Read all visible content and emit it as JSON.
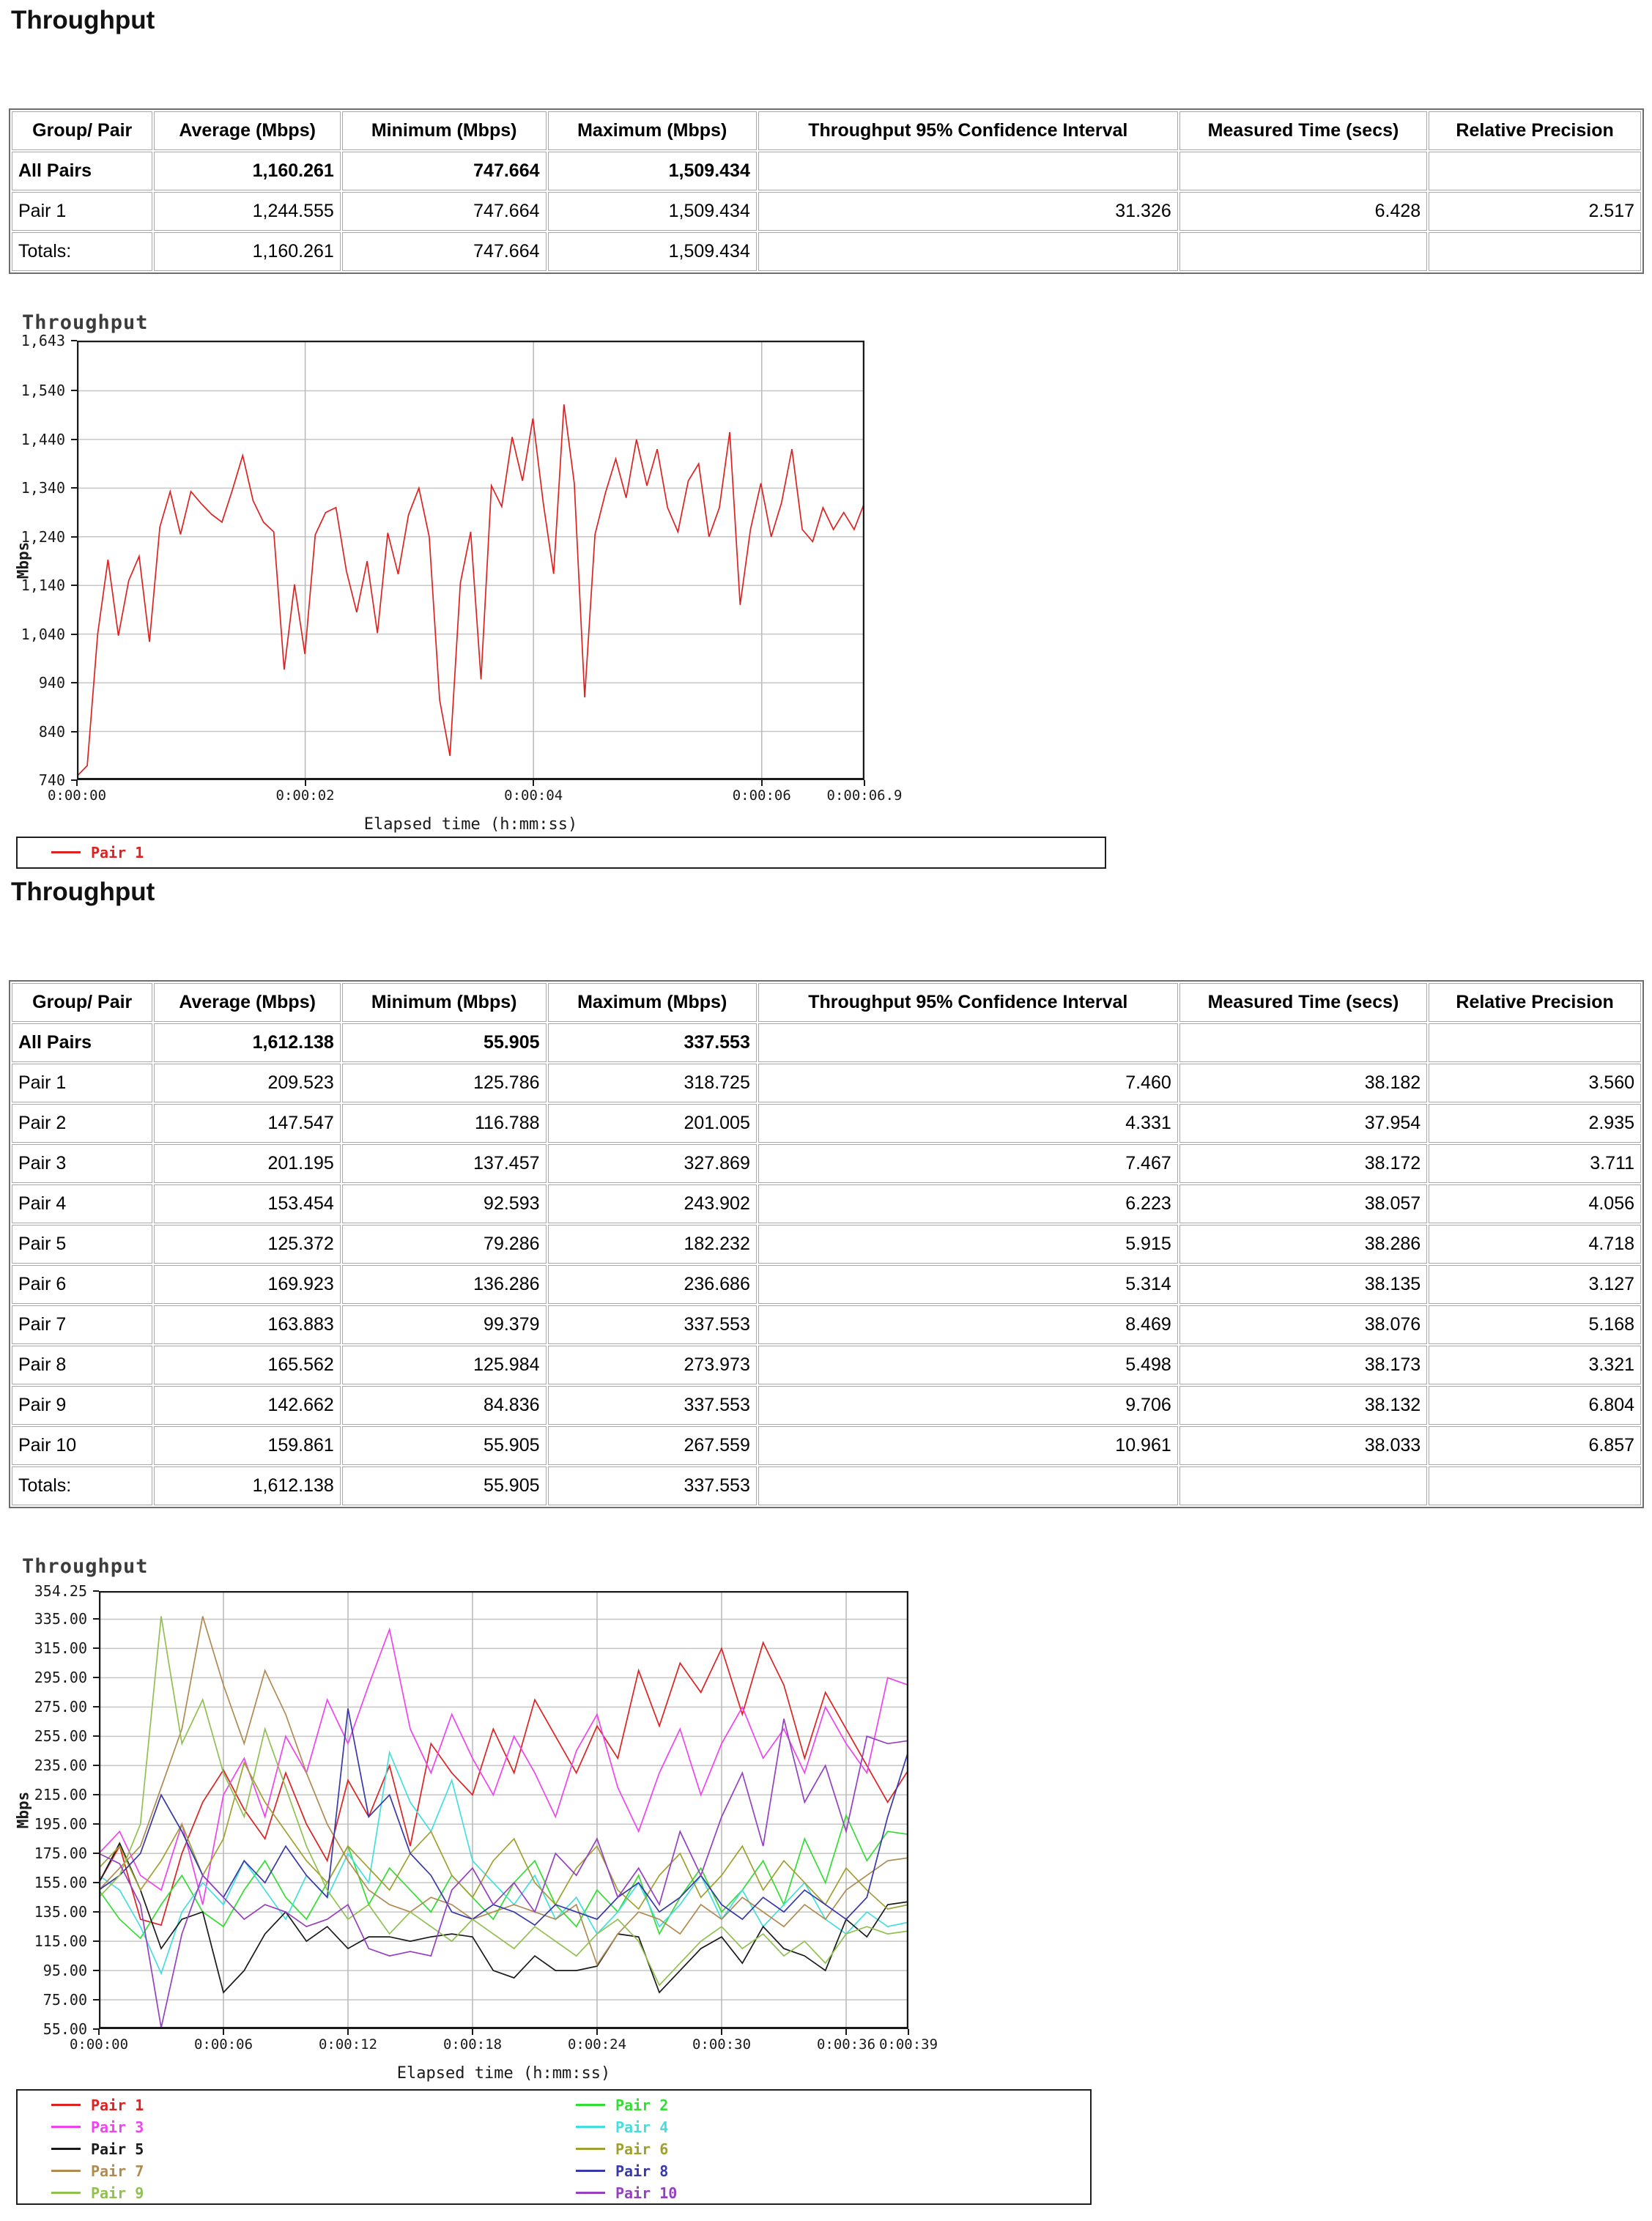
{
  "sections": [
    {
      "heading": "Throughput"
    },
    {
      "heading": "Throughput"
    }
  ],
  "tables": [
    {
      "headers": [
        "Group/ Pair",
        "Average (Mbps)",
        "Minimum (Mbps)",
        "Maximum (Mbps)",
        "Throughput 95% Confidence Interval",
        "Measured Time (secs)",
        "Relative Precision"
      ],
      "col_widths_pct": [
        8.7,
        11.5,
        12.6,
        12.9,
        25.9,
        15.3,
        13.1
      ],
      "rows": [
        {
          "bold": true,
          "cells": [
            "All Pairs",
            "1,160.261",
            "747.664",
            "1,509.434",
            "",
            "",
            ""
          ]
        },
        {
          "bold": false,
          "cells": [
            "Pair 1",
            "1,244.555",
            "747.664",
            "1,509.434",
            "31.326",
            "6.428",
            "2.517"
          ]
        },
        {
          "bold": false,
          "cells": [
            "Totals:",
            "1,160.261",
            "747.664",
            "1,509.434",
            "",
            "",
            ""
          ]
        }
      ]
    },
    {
      "headers": [
        "Group/ Pair",
        "Average (Mbps)",
        "Minimum (Mbps)",
        "Maximum (Mbps)",
        "Throughput 95% Confidence Interval",
        "Measured Time (secs)",
        "Relative Precision"
      ],
      "col_widths_pct": [
        8.7,
        11.5,
        12.6,
        12.9,
        25.9,
        15.3,
        13.1
      ],
      "rows": [
        {
          "bold": true,
          "cells": [
            "All Pairs",
            "1,612.138",
            "55.905",
            "337.553",
            "",
            "",
            ""
          ]
        },
        {
          "bold": false,
          "cells": [
            "Pair 1",
            "209.523",
            "125.786",
            "318.725",
            "7.460",
            "38.182",
            "3.560"
          ]
        },
        {
          "bold": false,
          "cells": [
            "Pair 2",
            "147.547",
            "116.788",
            "201.005",
            "4.331",
            "37.954",
            "2.935"
          ]
        },
        {
          "bold": false,
          "cells": [
            "Pair 3",
            "201.195",
            "137.457",
            "327.869",
            "7.467",
            "38.172",
            "3.711"
          ]
        },
        {
          "bold": false,
          "cells": [
            "Pair 4",
            "153.454",
            "92.593",
            "243.902",
            "6.223",
            "38.057",
            "4.056"
          ]
        },
        {
          "bold": false,
          "cells": [
            "Pair 5",
            "125.372",
            "79.286",
            "182.232",
            "5.915",
            "38.286",
            "4.718"
          ]
        },
        {
          "bold": false,
          "cells": [
            "Pair 6",
            "169.923",
            "136.286",
            "236.686",
            "5.314",
            "38.135",
            "3.127"
          ]
        },
        {
          "bold": false,
          "cells": [
            "Pair 7",
            "163.883",
            "99.379",
            "337.553",
            "8.469",
            "38.076",
            "5.168"
          ]
        },
        {
          "bold": false,
          "cells": [
            "Pair 8",
            "165.562",
            "125.984",
            "273.973",
            "5.498",
            "38.173",
            "3.321"
          ]
        },
        {
          "bold": false,
          "cells": [
            "Pair 9",
            "142.662",
            "84.836",
            "337.553",
            "9.706",
            "38.132",
            "6.804"
          ]
        },
        {
          "bold": false,
          "cells": [
            "Pair 10",
            "159.861",
            "55.905",
            "267.559",
            "10.961",
            "38.033",
            "6.857"
          ]
        },
        {
          "bold": false,
          "cells": [
            "Totals:",
            "1,612.138",
            "55.905",
            "337.553",
            "",
            "",
            ""
          ]
        }
      ]
    }
  ],
  "chart_data": [
    {
      "type": "line",
      "title": "Throughput",
      "xlabel": "Elapsed time (h:mm:ss)",
      "ylabel": "Mbps",
      "ylim": [
        740,
        1643
      ],
      "xlim": [
        0,
        6.9
      ],
      "grid": true,
      "legend_position": "bottom-box",
      "legend_cols": 1,
      "ytick_values": [
        1643,
        1540,
        1440,
        1340,
        1240,
        1140,
        1040,
        940,
        840,
        740
      ],
      "ytick_labels": [
        "1,643",
        "1,540",
        "1,440",
        "1,340",
        "1,240",
        "1,140",
        "1,040",
        "940",
        "840",
        "740"
      ],
      "xtick_values": [
        0,
        2,
        4,
        6,
        6.9
      ],
      "xtick_labels": [
        "0:00:00",
        "0:00:02",
        "0:00:04",
        "0:00:06",
        "0:00:06.9"
      ],
      "x_values_evenly_spaced": true,
      "series": [
        {
          "name": "Pair 1",
          "color": "#dd2222",
          "y": [
            748,
            770,
            1040,
            1193,
            1037,
            1150,
            1200,
            1024,
            1260,
            1333,
            1245,
            1333,
            1308,
            1286,
            1270,
            1336,
            1407,
            1314,
            1270,
            1250,
            967,
            1142,
            999,
            1244,
            1290,
            1300,
            1170,
            1085,
            1190,
            1042,
            1248,
            1163,
            1285,
            1340,
            1240,
            905,
            790,
            1145,
            1250,
            947,
            1345,
            1302,
            1445,
            1355,
            1483,
            1310,
            1164,
            1512,
            1350,
            910,
            1245,
            1330,
            1400,
            1320,
            1440,
            1345,
            1420,
            1300,
            1250,
            1355,
            1390,
            1240,
            1300,
            1455,
            1100,
            1255,
            1350,
            1240,
            1310,
            1420,
            1255,
            1230,
            1300,
            1255,
            1290,
            1255,
            1310
          ]
        }
      ]
    },
    {
      "type": "line",
      "title": "Throughput",
      "xlabel": "Elapsed time (h:mm:ss)",
      "ylabel": "Mbps",
      "ylim": [
        55,
        354.25
      ],
      "xlim": [
        0,
        39
      ],
      "grid": true,
      "legend_position": "bottom-box",
      "legend_cols": 2,
      "ytick_values": [
        354.25,
        335,
        315,
        295,
        275,
        255,
        235,
        215,
        195,
        175,
        155,
        135,
        115,
        95,
        75,
        55
      ],
      "ytick_labels": [
        "354.25",
        "335.00",
        "315.00",
        "295.00",
        "275.00",
        "255.00",
        "235.00",
        "215.00",
        "195.00",
        "175.00",
        "155.00",
        "135.00",
        "115.00",
        "95.00",
        "75.00",
        "55.00"
      ],
      "xtick_values": [
        0,
        6,
        12,
        18,
        24,
        30,
        36,
        39
      ],
      "xtick_labels": [
        "0:00:00",
        "0:00:06",
        "0:00:12",
        "0:00:18",
        "0:00:24",
        "0:00:30",
        "0:00:36",
        "0:00:39"
      ],
      "x_values_evenly_spaced": true,
      "series": [
        {
          "name": "Pair 1",
          "color": "#dd2222",
          "y": [
            155,
            180,
            130,
            126,
            175,
            210,
            232,
            205,
            185,
            230,
            195,
            170,
            225,
            200,
            235,
            180,
            250,
            230,
            215,
            260,
            230,
            280,
            255,
            230,
            262,
            240,
            300,
            262,
            305,
            285,
            315,
            270,
            319,
            290,
            240,
            285,
            260,
            235,
            210,
            232
          ]
        },
        {
          "name": "Pair 2",
          "color": "#33dd33",
          "y": [
            150,
            130,
            117,
            140,
            160,
            135,
            125,
            150,
            170,
            145,
            130,
            155,
            180,
            140,
            165,
            150,
            135,
            160,
            145,
            130,
            155,
            170,
            140,
            125,
            150,
            135,
            160,
            120,
            145,
            165,
            135,
            150,
            170,
            140,
            185,
            155,
            201,
            170,
            190,
            188
          ]
        },
        {
          "name": "Pair 3",
          "color": "#ee44ee",
          "y": [
            175,
            190,
            160,
            150,
            195,
            140,
            215,
            240,
            200,
            255,
            230,
            280,
            250,
            290,
            328,
            260,
            230,
            270,
            240,
            215,
            255,
            230,
            200,
            245,
            270,
            220,
            190,
            230,
            260,
            215,
            250,
            275,
            240,
            260,
            230,
            275,
            250,
            230,
            295,
            290
          ]
        },
        {
          "name": "Pair 4",
          "color": "#44dede",
          "y": [
            160,
            150,
            125,
            93,
            135,
            155,
            140,
            170,
            150,
            130,
            160,
            145,
            175,
            155,
            244,
            210,
            190,
            225,
            170,
            155,
            140,
            160,
            130,
            145,
            120,
            135,
            155,
            125,
            140,
            160,
            130,
            150,
            125,
            140,
            155,
            130,
            120,
            135,
            125,
            128
          ]
        },
        {
          "name": "Pair 5",
          "color": "#1a1a1a",
          "y": [
            155,
            182,
            150,
            110,
            130,
            135,
            80,
            95,
            120,
            135,
            115,
            125,
            110,
            118,
            118,
            115,
            118,
            120,
            118,
            95,
            90,
            105,
            95,
            95,
            98,
            120,
            118,
            80,
            95,
            110,
            118,
            100,
            125,
            110,
            105,
            95,
            130,
            118,
            140,
            142
          ]
        },
        {
          "name": "Pair 6",
          "color": "#a0a030",
          "y": [
            165,
            180,
            150,
            170,
            195,
            160,
            185,
            237,
            210,
            190,
            170,
            155,
            180,
            165,
            150,
            175,
            190,
            160,
            145,
            170,
            185,
            155,
            140,
            165,
            180,
            150,
            137,
            160,
            175,
            145,
            160,
            180,
            150,
            170,
            155,
            140,
            165,
            150,
            137,
            140
          ]
        },
        {
          "name": "Pair 7",
          "color": "#b08a50",
          "y": [
            150,
            165,
            180,
            220,
            260,
            337,
            290,
            250,
            300,
            270,
            230,
            195,
            170,
            150,
            140,
            135,
            145,
            140,
            130,
            135,
            140,
            135,
            130,
            140,
            99,
            120,
            135,
            130,
            120,
            140,
            130,
            145,
            135,
            125,
            140,
            130,
            150,
            160,
            170,
            172
          ]
        },
        {
          "name": "Pair 8",
          "color": "#3838a8",
          "y": [
            150,
            160,
            175,
            215,
            190,
            160,
            145,
            170,
            155,
            180,
            160,
            145,
            274,
            200,
            215,
            175,
            160,
            135,
            130,
            140,
            135,
            126,
            140,
            135,
            130,
            145,
            155,
            135,
            145,
            160,
            140,
            130,
            145,
            135,
            150,
            140,
            130,
            145,
            200,
            245
          ]
        },
        {
          "name": "Pair 9",
          "color": "#90c050",
          "y": [
            145,
            160,
            195,
            337,
            250,
            280,
            230,
            200,
            260,
            220,
            180,
            150,
            130,
            140,
            120,
            135,
            125,
            115,
            130,
            120,
            110,
            125,
            115,
            105,
            120,
            130,
            115,
            85,
            100,
            115,
            125,
            110,
            120,
            105,
            115,
            100,
            120,
            125,
            120,
            122
          ]
        },
        {
          "name": "Pair 10",
          "color": "#9440c0",
          "y": [
            175,
            168,
            140,
            56,
            120,
            160,
            145,
            130,
            140,
            135,
            125,
            130,
            140,
            110,
            105,
            108,
            105,
            150,
            165,
            140,
            155,
            135,
            175,
            160,
            185,
            145,
            165,
            140,
            190,
            160,
            200,
            230,
            180,
            267,
            210,
            235,
            190,
            255,
            250,
            252
          ]
        }
      ]
    }
  ]
}
